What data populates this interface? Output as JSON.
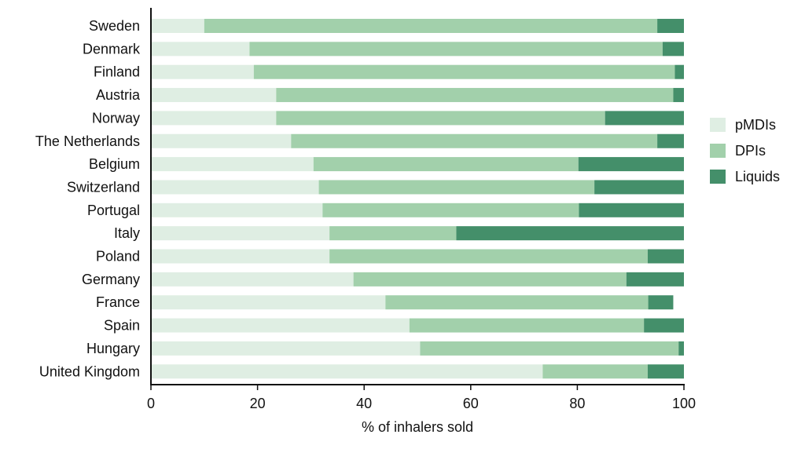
{
  "chart_data": {
    "type": "bar",
    "orientation": "horizontal",
    "stacked": true,
    "categories": [
      "Sweden",
      "Denmark",
      "Finland",
      "Austria",
      "Norway",
      "The Netherlands",
      "Belgium",
      "Switzerland",
      "Portugal",
      "Italy",
      "Poland",
      "Germany",
      "France",
      "Spain",
      "Hungary",
      "United Kingdom"
    ],
    "series": [
      {
        "name": "pMDIs",
        "color": "#dfeee3",
        "values": [
          10,
          18.5,
          19.3,
          23.5,
          23.5,
          26.3,
          30.5,
          31.5,
          32.2,
          33.5,
          33.5,
          38,
          44,
          48.5,
          50.5,
          73.5
        ]
      },
      {
        "name": "DPIs",
        "color": "#a2d0ab",
        "values": [
          85,
          77.5,
          79,
          74.5,
          61.7,
          68.7,
          49.7,
          51.7,
          48.1,
          23.8,
          59.7,
          51.2,
          49.3,
          44,
          48.5,
          19.7
        ]
      },
      {
        "name": "Liquids",
        "color": "#448f6a",
        "values": [
          5,
          4,
          1.7,
          2,
          14.8,
          5,
          19.8,
          16.8,
          19.7,
          42.7,
          6.8,
          10.8,
          4.7,
          7.5,
          1,
          6.8
        ]
      }
    ],
    "xlabel": "% of inhalers sold",
    "ylabel": "",
    "xlim": [
      0,
      100
    ],
    "xticks": [
      "0",
      "20",
      "40",
      "60",
      "80",
      "100"
    ],
    "grid": false,
    "legend_position": "right"
  }
}
